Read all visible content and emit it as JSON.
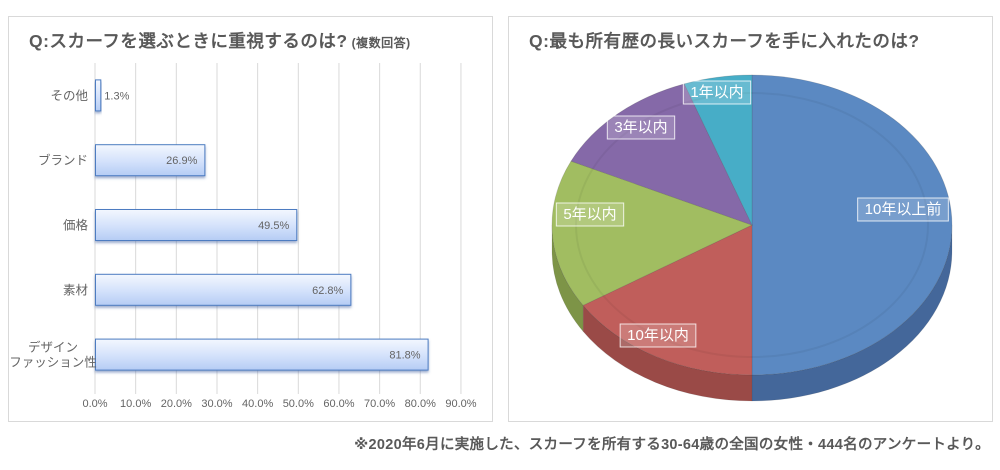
{
  "footnote": "※2020年6月に実施した、スカーフを所有する30-64歳の全国の女性・444名のアンケートより。",
  "bar_panel": {
    "title": "Q:スカーフを選ぶときに重視するのは?",
    "title_suffix": "(複数回答)"
  },
  "pie_panel": {
    "title": "Q:最も所有歴の長いスカーフを手に入れたのは?"
  },
  "chart_data": [
    {
      "type": "bar",
      "orientation": "horizontal",
      "title": "Q:スカーフを選ぶときに重視するのは?(複数回答)",
      "categories": [
        "その他",
        "ブランド",
        "価格",
        "素材",
        "デザイン\nファッション性"
      ],
      "values": [
        1.3,
        26.9,
        49.5,
        62.8,
        81.8
      ],
      "value_labels": [
        "1.3%",
        "26.9%",
        "49.5%",
        "62.8%",
        "81.8%"
      ],
      "xlim": [
        0,
        90
      ],
      "x_ticks": [
        "0.0%",
        "10.0%",
        "20.0%",
        "30.0%",
        "40.0%",
        "50.0%",
        "60.0%",
        "70.0%",
        "80.0%",
        "90.0%"
      ],
      "grid": true,
      "colors": {
        "bar_fill_top": "#f3f7fe",
        "bar_fill_mid": "#d3e1fb",
        "bar_fill_bottom": "#b5ccf4",
        "bar_border": "#4d7cc1",
        "bar_shadow": "#3a5c9e",
        "gridline": "#d9d9d9",
        "label_text": "#646464"
      }
    },
    {
      "type": "pie",
      "style": "3d",
      "title": "Q:最も所有歴の長いスカーフを手に入れたのは?",
      "labels": [
        "10年以上前",
        "10年以内",
        "5年以内",
        "3年以内",
        "1年以内"
      ],
      "values": [
        50.0,
        16.0,
        16.0,
        12.5,
        5.5
      ],
      "unit": "%",
      "start_angle": "top",
      "direction": "clockwise",
      "colors": [
        "#5b89c2",
        "#c05e5b",
        "#a1bd61",
        "#8569a8",
        "#47adc7"
      ],
      "side_colors": [
        "#44679a",
        "#9a4a47",
        "#7d9447",
        "#665083",
        "#35869c"
      ],
      "label_text_color": "#ffffff"
    }
  ]
}
